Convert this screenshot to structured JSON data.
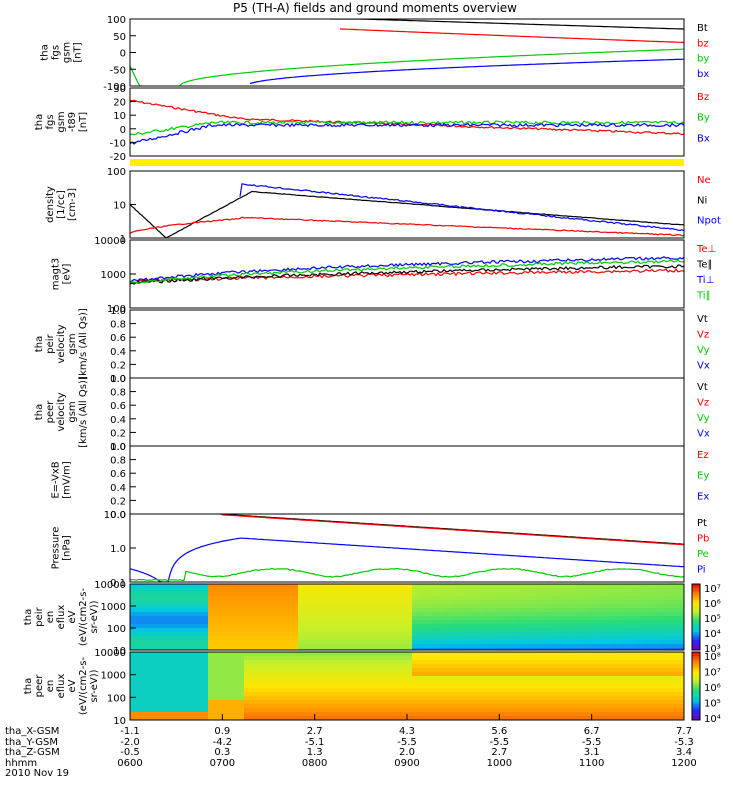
{
  "title": "P5 (TH-A) fields and ground moments overview",
  "chart_data": [
    {
      "type": "line",
      "ylabel": [
        "tha",
        "fgs",
        "gsm",
        "[nT]"
      ],
      "yticks": [
        "100",
        "50",
        "0",
        "-50",
        "-100"
      ],
      "ylim": [
        -100,
        100
      ],
      "series": [
        {
          "name": "Bt",
          "color": "#000000"
        },
        {
          "name": "bz",
          "color": "#ff0000"
        },
        {
          "name": "by",
          "color": "#00cc00"
        },
        {
          "name": "bx",
          "color": "#0000ff"
        }
      ]
    },
    {
      "type": "line",
      "ylabel": [
        "tha",
        "fgs",
        "gsm",
        "-t89",
        "[nT]"
      ],
      "yticks": [
        "30",
        "20",
        "10",
        "0",
        "-10",
        "-20"
      ],
      "ylim": [
        -25,
        30
      ],
      "series": [
        {
          "name": "Bz",
          "color": "#ff0000"
        },
        {
          "name": "By",
          "color": "#00cc00"
        },
        {
          "name": "Bx",
          "color": "#0000ff"
        }
      ]
    },
    {
      "type": "line",
      "ylabel": [
        "density",
        "[1/cc]",
        "[cm-3]"
      ],
      "yticks": [
        "100",
        "10",
        "1"
      ],
      "scale": "log",
      "series": [
        {
          "name": "Ne",
          "color": "#ff0000"
        },
        {
          "name": "Ni",
          "color": "#000000"
        },
        {
          "name": "Npot",
          "color": "#0000ff"
        }
      ]
    },
    {
      "type": "line",
      "ylabel": [
        "magt3",
        "[eV]"
      ],
      "yticks": [
        "10000",
        "1000",
        "100"
      ],
      "scale": "log",
      "series": [
        {
          "name": "Te⊥",
          "color": "#ff0000"
        },
        {
          "name": "Te∥",
          "color": "#000000"
        },
        {
          "name": "Ti⊥",
          "color": "#0000ff"
        },
        {
          "name": "Ti∥",
          "color": "#00cc00"
        }
      ]
    },
    {
      "type": "line",
      "ylabel": [
        "tha",
        "peir",
        "velocity",
        "gsm",
        "[km/s (All Qs)]"
      ],
      "yticks": [
        "1.0",
        "0.8",
        "0.6",
        "0.4",
        "0.2",
        "0.0"
      ],
      "ylim": [
        0,
        1
      ],
      "series": [
        {
          "name": "Vt",
          "color": "#000000"
        },
        {
          "name": "Vz",
          "color": "#ff0000"
        },
        {
          "name": "Vy",
          "color": "#00cc00"
        },
        {
          "name": "Vx",
          "color": "#0000ff"
        }
      ]
    },
    {
      "type": "line",
      "ylabel": [
        "tha",
        "peer",
        "velocity",
        "gsm",
        "[km/s (All Qs)]"
      ],
      "yticks": [
        "1.0",
        "0.8",
        "0.6",
        "0.4",
        "0.2",
        "0.0"
      ],
      "ylim": [
        0,
        1
      ],
      "series": [
        {
          "name": "Vt",
          "color": "#000000"
        },
        {
          "name": "Vz",
          "color": "#ff0000"
        },
        {
          "name": "Vy",
          "color": "#00cc00"
        },
        {
          "name": "Vx",
          "color": "#0000ff"
        }
      ]
    },
    {
      "type": "line",
      "ylabel": [
        "E=-VxB",
        "[mV/m]"
      ],
      "yticks": [
        "1.0",
        "0.8",
        "0.6",
        "0.4",
        "0.2",
        "0.0"
      ],
      "ylim": [
        0,
        1
      ],
      "series": [
        {
          "name": "Ez",
          "color": "#ff0000"
        },
        {
          "name": "Ey",
          "color": "#00cc00"
        },
        {
          "name": "Ex",
          "color": "#0000ff"
        }
      ]
    },
    {
      "type": "line",
      "ylabel": [
        "Pressure",
        "[nPa]"
      ],
      "yticks": [
        "10.0",
        "1.0",
        "0.1"
      ],
      "scale": "log",
      "series": [
        {
          "name": "Pt",
          "color": "#000000"
        },
        {
          "name": "Pb",
          "color": "#ff0000"
        },
        {
          "name": "Pe",
          "color": "#00cc00"
        },
        {
          "name": "Pi",
          "color": "#0000ff"
        }
      ]
    },
    {
      "type": "heatmap",
      "ylabel": [
        "tha",
        "peir",
        "en",
        "eflux",
        "eV",
        "(eV/(cm2-s-",
        "sr-eV))"
      ],
      "yticks": [
        "10000",
        "1000",
        "100",
        "10"
      ],
      "colorbar": [
        "10⁷",
        "10⁶",
        "10⁵",
        "10⁴",
        "10³"
      ]
    },
    {
      "type": "heatmap",
      "ylabel": [
        "tha",
        "peer",
        "en",
        "eflux",
        "eV",
        "(eV/(cm2-s-",
        "sr-eV))"
      ],
      "yticks": [
        "10000",
        "1000",
        "100",
        "10"
      ],
      "colorbar": [
        "10⁸",
        "10⁷",
        "10⁶",
        "10⁵",
        "10⁴"
      ]
    }
  ],
  "xaxis": {
    "rows": [
      {
        "label": "tha_X-GSM",
        "values": [
          "-1.1",
          "0.9",
          "2.7",
          "4.3",
          "5.6",
          "6.7",
          "7.7"
        ]
      },
      {
        "label": "tha_Y-GSM",
        "values": [
          "-2.0",
          "-4.2",
          "-5.1",
          "-5.5",
          "-5.5",
          "-5.5",
          "-5.3"
        ]
      },
      {
        "label": "tha_Z-GSM",
        "values": [
          "-0.5",
          "0.3",
          "1.3",
          "2.0",
          "2.7",
          "3.1",
          "3.4"
        ]
      },
      {
        "label": "hhmm",
        "values": [
          "0600",
          "0700",
          "0800",
          "0900",
          "1000",
          "1100",
          "1200"
        ]
      }
    ],
    "date": "2010 Nov 19"
  }
}
